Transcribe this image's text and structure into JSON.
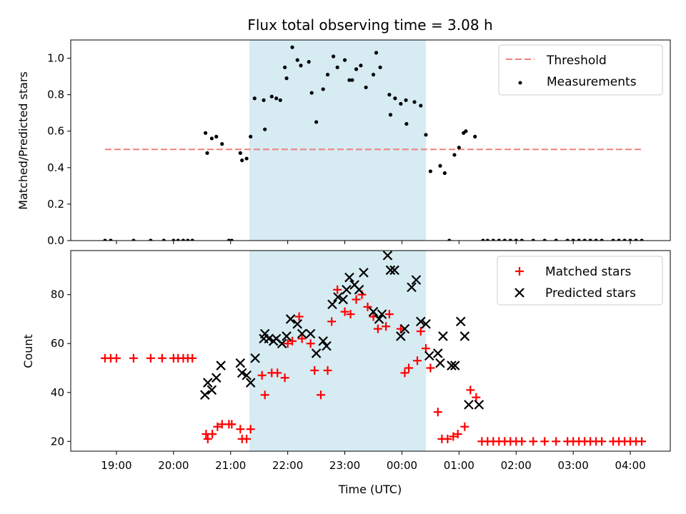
{
  "chart_data": [
    {
      "type": "scatter",
      "title": "Flux total observing time = 3.08 h",
      "ylabel": "Matched/Predicted stars",
      "xlabel": "",
      "ylim": [
        0,
        1.1
      ],
      "yticks": [
        0.0,
        0.2,
        0.4,
        0.6,
        0.8,
        1.0
      ],
      "ytick_labels": [
        "0.0",
        "0.2",
        "0.4",
        "0.6",
        "0.8",
        "1.0"
      ],
      "xlim": [
        18.2,
        4.7
      ],
      "grid": false,
      "legend_position": "top-right",
      "shaded_span": [
        21.33,
        0.42
      ],
      "shaded_color": "#add8e6",
      "threshold": {
        "name": "Threshold",
        "value": 0.5,
        "x_range": [
          18.8,
          4.2
        ],
        "color": "#f08080",
        "style": "dashed"
      },
      "series": [
        {
          "name": "Measurements",
          "marker": "dot",
          "color": "#000000",
          "x": [
            18.8,
            18.9,
            19.3,
            19.6,
            19.83,
            20.0,
            20.08,
            20.17,
            20.25,
            20.33,
            20.56,
            20.59,
            20.67,
            20.75,
            20.85,
            20.97,
            21.02,
            21.17,
            21.2,
            21.28,
            21.35,
            21.42,
            21.58,
            21.6,
            21.72,
            21.8,
            21.87,
            21.95,
            21.98,
            22.08,
            22.17,
            22.23,
            22.37,
            22.42,
            22.5,
            22.62,
            22.7,
            22.8,
            22.87,
            23.0,
            23.08,
            23.13,
            23.2,
            23.28,
            23.37,
            23.5,
            23.55,
            23.62,
            23.78,
            23.8,
            23.88,
            23.98,
            24.07,
            24.08,
            24.22,
            24.33,
            24.42,
            24.5,
            24.67,
            24.75,
            24.83,
            24.92,
            25.0,
            25.08,
            25.12,
            25.28,
            25.42,
            25.5,
            25.6,
            25.7,
            25.8,
            25.9,
            26.0,
            26.1,
            26.3,
            26.5,
            26.7,
            26.9,
            27.0,
            27.1,
            27.2,
            27.3,
            27.4,
            27.5,
            27.7,
            27.8,
            27.9,
            28.0,
            28.1,
            28.2
          ],
          "y": [
            0.0,
            0.0,
            0.0,
            0.0,
            0.0,
            0.0,
            0.0,
            0.0,
            0.0,
            0.0,
            0.59,
            0.48,
            0.56,
            0.57,
            0.53,
            0.0,
            0.0,
            0.48,
            0.44,
            0.45,
            0.57,
            0.78,
            0.77,
            0.61,
            0.79,
            0.78,
            0.77,
            0.95,
            0.89,
            1.06,
            0.99,
            0.96,
            0.98,
            0.81,
            0.65,
            0.83,
            0.91,
            1.01,
            0.95,
            0.99,
            0.88,
            0.88,
            0.94,
            0.96,
            0.84,
            0.91,
            1.03,
            0.95,
            0.8,
            0.69,
            0.78,
            0.75,
            0.77,
            0.64,
            0.76,
            0.74,
            0.58,
            0.38,
            0.41,
            0.37,
            0.0,
            0.47,
            0.51,
            0.59,
            0.6,
            0.57,
            0.0,
            0.0,
            0.0,
            0.0,
            0.0,
            0.0,
            0.0,
            0.0,
            0.0,
            0.0,
            0.0,
            0.0,
            0.0,
            0.0,
            0.0,
            0.0,
            0.0,
            0.0,
            0.0,
            0.0,
            0.0,
            0.0,
            0.0,
            0.0
          ]
        }
      ]
    },
    {
      "type": "scatter",
      "title": "",
      "ylabel": "Count",
      "xlabel": "Time (UTC)",
      "ylim": [
        16,
        98
      ],
      "yticks": [
        20,
        40,
        60,
        80
      ],
      "ytick_labels": [
        "20",
        "40",
        "60",
        "80"
      ],
      "xlim": [
        18.2,
        4.7
      ],
      "xticks": [
        19,
        20,
        21,
        22,
        23,
        24,
        25,
        26,
        27,
        28
      ],
      "xtick_labels": [
        "19:00",
        "20:00",
        "21:00",
        "22:00",
        "23:00",
        "00:00",
        "01:00",
        "02:00",
        "03:00",
        "04:00"
      ],
      "grid": false,
      "legend_position": "top-right",
      "shaded_span": [
        21.33,
        0.42
      ],
      "shaded_color": "#add8e6",
      "series": [
        {
          "name": "Matched stars",
          "marker": "plus",
          "color": "#ff0000",
          "x": [
            18.8,
            18.9,
            19.0,
            19.3,
            19.6,
            19.8,
            20.0,
            20.08,
            20.17,
            20.25,
            20.33,
            20.57,
            20.6,
            20.68,
            20.77,
            20.85,
            20.97,
            21.02,
            21.17,
            21.2,
            21.28,
            21.35,
            21.55,
            21.6,
            21.72,
            21.82,
            21.95,
            22.0,
            22.08,
            22.2,
            22.25,
            22.4,
            22.47,
            22.58,
            22.7,
            22.77,
            22.87,
            23.0,
            23.1,
            23.2,
            23.3,
            23.4,
            23.5,
            23.58,
            23.72,
            23.78,
            23.98,
            24.05,
            24.12,
            24.27,
            24.33,
            24.42,
            24.5,
            24.63,
            24.7,
            24.8,
            24.9,
            24.98,
            25.1,
            25.2,
            25.3,
            25.4,
            25.5,
            25.6,
            25.7,
            25.8,
            25.9,
            26.0,
            26.1,
            26.3,
            26.5,
            26.7,
            26.9,
            27.0,
            27.1,
            27.2,
            27.3,
            27.4,
            27.5,
            27.7,
            27.8,
            27.9,
            28.0,
            28.1,
            28.2
          ],
          "y": [
            54,
            54,
            54,
            54,
            54,
            54,
            54,
            54,
            54,
            54,
            54,
            23,
            21,
            23,
            26,
            27,
            27,
            27,
            25,
            21,
            21,
            25,
            47,
            39,
            48,
            48,
            46,
            60,
            61,
            71,
            62,
            60,
            49,
            39,
            49,
            69,
            82,
            73,
            72,
            78,
            80,
            75,
            71,
            66,
            67,
            72,
            66,
            48,
            50,
            53,
            65,
            58,
            50,
            32,
            21,
            21,
            22,
            23,
            26,
            41,
            38,
            20,
            20,
            20,
            20,
            20,
            20,
            20,
            20,
            20,
            20,
            20,
            20,
            20,
            20,
            20,
            20,
            20,
            20,
            20,
            20,
            20,
            20,
            20,
            20
          ]
        },
        {
          "name": "Predicted stars",
          "marker": "x",
          "color": "#000000",
          "x": [
            20.55,
            20.6,
            20.67,
            20.75,
            20.83,
            21.17,
            21.2,
            21.28,
            21.35,
            21.43,
            21.58,
            21.6,
            21.67,
            21.75,
            21.8,
            21.9,
            21.98,
            22.05,
            22.17,
            22.25,
            22.4,
            22.5,
            22.62,
            22.68,
            22.78,
            22.88,
            22.97,
            23.03,
            23.08,
            23.17,
            23.25,
            23.33,
            23.5,
            23.6,
            23.65,
            23.75,
            23.8,
            23.87,
            23.98,
            24.05,
            24.17,
            24.25,
            24.33,
            24.42,
            24.48,
            24.63,
            24.67,
            24.72,
            24.87,
            24.93,
            25.03,
            25.1,
            25.17,
            25.35
          ],
          "y": [
            39,
            44,
            41,
            46,
            51,
            52,
            48,
            47,
            44,
            54,
            62,
            64,
            62,
            61,
            62,
            60,
            63,
            70,
            68,
            64,
            64,
            56,
            61,
            59,
            76,
            79,
            78,
            82,
            87,
            84,
            82,
            89,
            73,
            70,
            72,
            96,
            90,
            90,
            63,
            66,
            83,
            86,
            69,
            68,
            55,
            56,
            52,
            63,
            51,
            51,
            69,
            63,
            35,
            35
          ]
        }
      ]
    }
  ]
}
